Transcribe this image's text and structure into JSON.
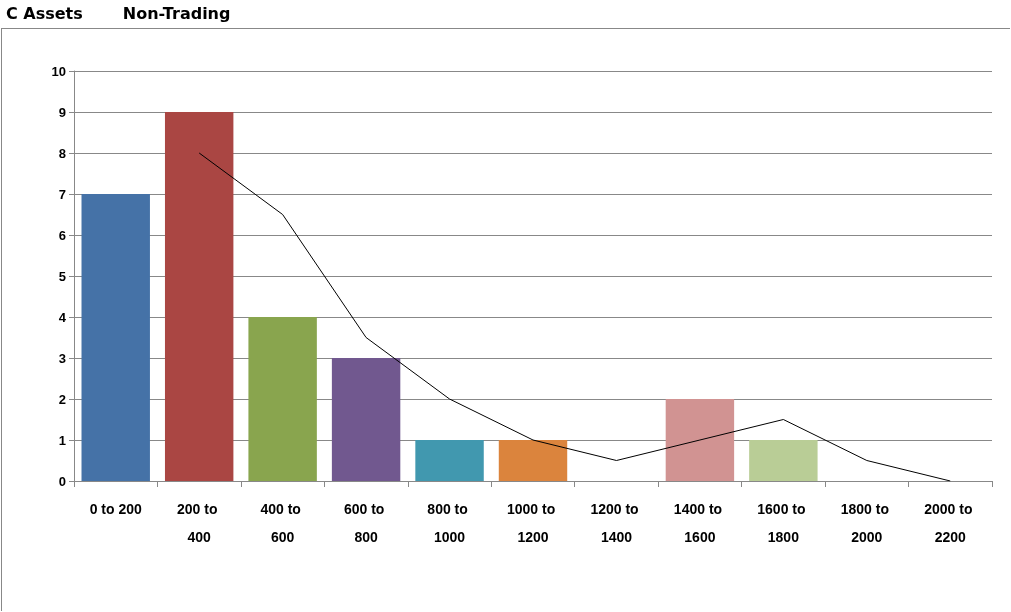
{
  "chart_data": {
    "type": "bar",
    "title": "C Assets",
    "subtitle": "Non-Trading",
    "categories": [
      "0 to 200",
      "200 to 400",
      "400 to 600",
      "600 to 800",
      "800 to 1000",
      "1000 to 1200",
      "1200 to 1400",
      "1400 to 1600",
      "1600 to 1800",
      "1800 to 2000",
      "2000 to 2200"
    ],
    "series": [
      {
        "colors": [
          "#4572a7",
          "#aa4643",
          "#89a54e",
          "#71588f",
          "#4198af",
          "#db843d",
          "#93a9cf",
          "#d19392",
          "#b9cd96",
          "#a99bbd",
          "#92a8cd"
        ],
        "values": [
          7,
          9,
          4,
          3,
          1,
          1,
          0,
          2,
          1,
          0,
          0
        ]
      },
      {
        "type": "line",
        "color": "#000000",
        "values": [
          null,
          8,
          6.5,
          3.5,
          2,
          1,
          0.5,
          1,
          1.5,
          0.5,
          0
        ]
      }
    ],
    "ylim": [
      0,
      10
    ],
    "yticks": [
      0,
      1,
      2,
      3,
      4,
      5,
      6,
      7,
      8,
      9,
      10
    ],
    "grid": "y",
    "marker": "none",
    "line_style": "solid"
  }
}
